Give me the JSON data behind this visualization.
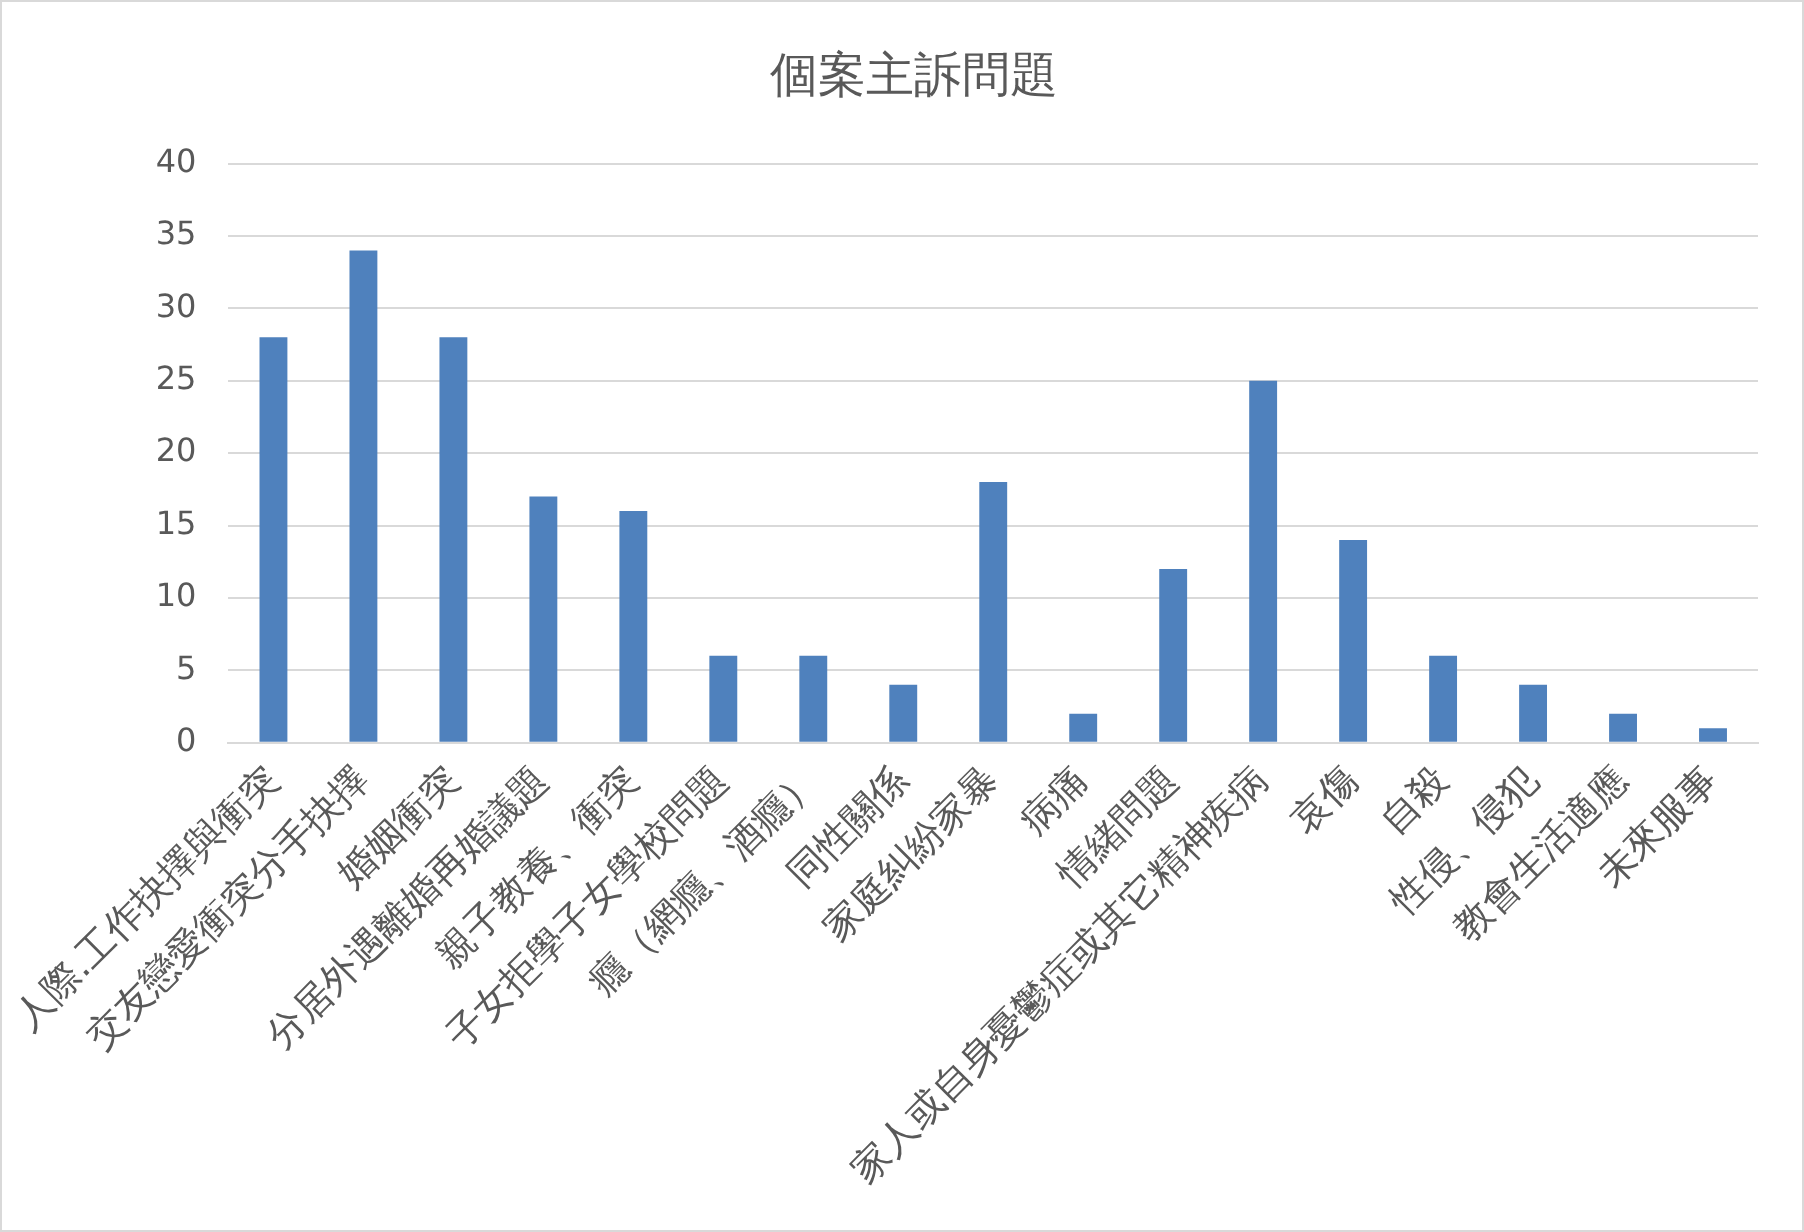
{
  "chart_data": {
    "type": "bar",
    "title": "個案主訴問題",
    "categories": [
      "人際.工作抉擇與衝突",
      "交友戀愛衝突分手抉擇",
      "婚姻衝突",
      "分居外遇離婚再婚議題",
      "親子教養、衝突",
      "子女拒學子女學校問題",
      "癮（網癮、酒癮）",
      "同性關係",
      "家庭糾紛家暴",
      "病痛",
      "情緒問題",
      "家人或自身憂鬱症或其它精神疾病",
      "哀傷",
      "自殺",
      "性侵、侵犯",
      "教會生活適應",
      "未來服事"
    ],
    "values": [
      28,
      34,
      28,
      17,
      16,
      6,
      6,
      4,
      18,
      2,
      12,
      25,
      14,
      6,
      4,
      2,
      1
    ],
    "color": "#4f81bd",
    "ylim": [
      0,
      40
    ],
    "yticks": [
      0,
      5,
      10,
      15,
      20,
      25,
      30,
      35,
      40
    ],
    "grid": "y",
    "legend": false
  }
}
